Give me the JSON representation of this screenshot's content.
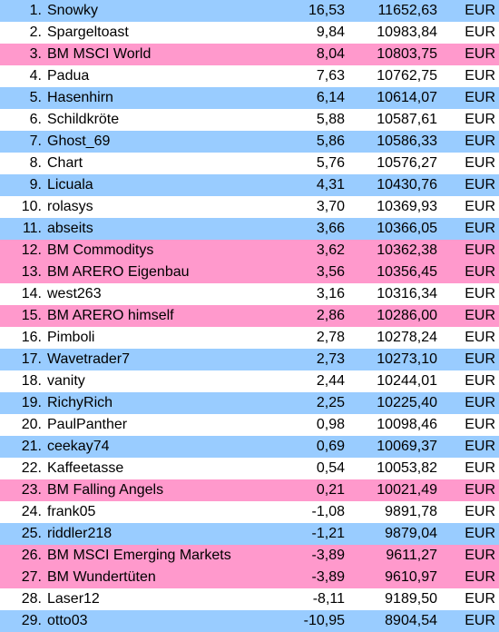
{
  "colors": {
    "blue": "#99ccff",
    "white": "#ffffff",
    "pink": "#ff99cc"
  },
  "rows": [
    {
      "rank": "1.",
      "name": "Snowky",
      "pct": "16,53",
      "value": "11652,63",
      "currency": "EUR",
      "bg": "blue"
    },
    {
      "rank": "2.",
      "name": "Spargeltoast",
      "pct": "9,84",
      "value": "10983,84",
      "currency": "EUR",
      "bg": "white"
    },
    {
      "rank": "3.",
      "name": "BM MSCI World",
      "pct": "8,04",
      "value": "10803,75",
      "currency": "EUR",
      "bg": "pink"
    },
    {
      "rank": "4.",
      "name": "Padua",
      "pct": "7,63",
      "value": "10762,75",
      "currency": "EUR",
      "bg": "white"
    },
    {
      "rank": "5.",
      "name": "Hasenhirn",
      "pct": "6,14",
      "value": "10614,07",
      "currency": "EUR",
      "bg": "blue"
    },
    {
      "rank": "6.",
      "name": "Schildkröte",
      "pct": "5,88",
      "value": "10587,61",
      "currency": "EUR",
      "bg": "white"
    },
    {
      "rank": "7.",
      "name": "Ghost_69",
      "pct": "5,86",
      "value": "10586,33",
      "currency": "EUR",
      "bg": "blue"
    },
    {
      "rank": "8.",
      "name": "Chart",
      "pct": "5,76",
      "value": "10576,27",
      "currency": "EUR",
      "bg": "white"
    },
    {
      "rank": "9.",
      "name": "Licuala",
      "pct": "4,31",
      "value": "10430,76",
      "currency": "EUR",
      "bg": "blue"
    },
    {
      "rank": "10.",
      "name": "rolasys",
      "pct": "3,70",
      "value": "10369,93",
      "currency": "EUR",
      "bg": "white"
    },
    {
      "rank": "11.",
      "name": "abseits",
      "pct": "3,66",
      "value": "10366,05",
      "currency": "EUR",
      "bg": "blue"
    },
    {
      "rank": "12.",
      "name": "BM Commoditys",
      "pct": "3,62",
      "value": "10362,38",
      "currency": "EUR",
      "bg": "pink"
    },
    {
      "rank": "13.",
      "name": "BM ARERO Eigenbau",
      "pct": "3,56",
      "value": "10356,45",
      "currency": "EUR",
      "bg": "pink"
    },
    {
      "rank": "14.",
      "name": "west263",
      "pct": "3,16",
      "value": "10316,34",
      "currency": "EUR",
      "bg": "white"
    },
    {
      "rank": "15.",
      "name": "BM ARERO himself",
      "pct": "2,86",
      "value": "10286,00",
      "currency": "EUR",
      "bg": "pink"
    },
    {
      "rank": "16.",
      "name": "Pimboli",
      "pct": "2,78",
      "value": "10278,24",
      "currency": "EUR",
      "bg": "white"
    },
    {
      "rank": "17.",
      "name": "Wavetrader7",
      "pct": "2,73",
      "value": "10273,10",
      "currency": "EUR",
      "bg": "blue"
    },
    {
      "rank": "18.",
      "name": "vanity",
      "pct": "2,44",
      "value": "10244,01",
      "currency": "EUR",
      "bg": "white"
    },
    {
      "rank": "19.",
      "name": "RichyRich",
      "pct": "2,25",
      "value": "10225,40",
      "currency": "EUR",
      "bg": "blue"
    },
    {
      "rank": "20.",
      "name": "PaulPanther",
      "pct": "0,98",
      "value": "10098,46",
      "currency": "EUR",
      "bg": "white"
    },
    {
      "rank": "21.",
      "name": "ceekay74",
      "pct": "0,69",
      "value": "10069,37",
      "currency": "EUR",
      "bg": "blue"
    },
    {
      "rank": "22.",
      "name": "Kaffeetasse",
      "pct": "0,54",
      "value": "10053,82",
      "currency": "EUR",
      "bg": "white"
    },
    {
      "rank": "23.",
      "name": "BM Falling Angels",
      "pct": "0,21",
      "value": "10021,49",
      "currency": "EUR",
      "bg": "pink"
    },
    {
      "rank": "24.",
      "name": "frank05",
      "pct": "-1,08",
      "value": "9891,78",
      "currency": "EUR",
      "bg": "white"
    },
    {
      "rank": "25.",
      "name": "riddler218",
      "pct": "-1,21",
      "value": "9879,04",
      "currency": "EUR",
      "bg": "blue"
    },
    {
      "rank": "26.",
      "name": "BM MSCI Emerging Markets",
      "pct": "-3,89",
      "value": "9611,27",
      "currency": "EUR",
      "bg": "pink"
    },
    {
      "rank": "27.",
      "name": "BM Wundertüten",
      "pct": "-3,89",
      "value": "9610,97",
      "currency": "EUR",
      "bg": "pink"
    },
    {
      "rank": "28.",
      "name": "Laser12",
      "pct": "-8,11",
      "value": "9189,50",
      "currency": "EUR",
      "bg": "white"
    },
    {
      "rank": "29.",
      "name": "otto03",
      "pct": "-10,95",
      "value": "8904,54",
      "currency": "EUR",
      "bg": "blue"
    }
  ]
}
